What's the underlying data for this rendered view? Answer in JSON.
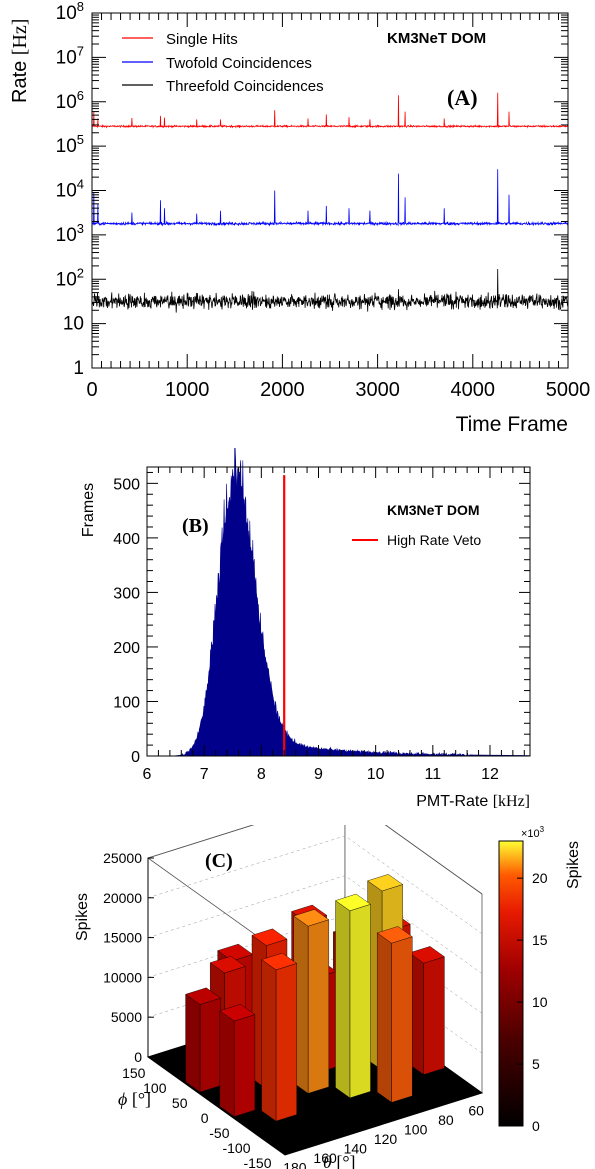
{
  "chart_data": [
    {
      "type": "line",
      "panel_label": "(A)",
      "title": "KM3NeT DOM",
      "xlabel": "Time Frame",
      "ylabel": "Rate [Hz]",
      "ylabel_parts": [
        "Rate ",
        "[Hz]"
      ],
      "xlim": [
        0,
        5000
      ],
      "ylim": [
        1,
        100000000
      ],
      "yscale": "log",
      "x_ticks": [
        "0",
        "1000",
        "2000",
        "3000",
        "4000",
        "5000"
      ],
      "y_ticks": [
        {
          "base": "1",
          "exp": ""
        },
        {
          "base": "10",
          "exp": ""
        },
        {
          "base": "10",
          "exp": "2"
        },
        {
          "base": "10",
          "exp": "3"
        },
        {
          "base": "10",
          "exp": "4"
        },
        {
          "base": "10",
          "exp": "5"
        },
        {
          "base": "10",
          "exp": "6"
        },
        {
          "base": "10",
          "exp": "7"
        },
        {
          "base": "10",
          "exp": "8"
        }
      ],
      "legend_position": "top-left",
      "series": [
        {
          "name": "Single Hits",
          "color": "#ff0000",
          "baseline": 280000,
          "spread": 0.03,
          "spikes": [
            [
              18,
              600000
            ],
            [
              60,
              420000
            ],
            [
              420,
              430000
            ],
            [
              720,
              480000
            ],
            [
              760,
              440000
            ],
            [
              1100,
              400000
            ],
            [
              1350,
              400000
            ],
            [
              1920,
              650000
            ],
            [
              2270,
              420000
            ],
            [
              2460,
              520000
            ],
            [
              2700,
              450000
            ],
            [
              2920,
              400000
            ],
            [
              3220,
              1400000
            ],
            [
              3290,
              600000
            ],
            [
              3700,
              420000
            ],
            [
              4260,
              1600000
            ],
            [
              4380,
              600000
            ]
          ]
        },
        {
          "name": "Twofold Coincidences",
          "color": "#0000ff",
          "baseline": 1800,
          "spread": 0.05,
          "spikes": [
            [
              18,
              9000
            ],
            [
              60,
              5000
            ],
            [
              420,
              3200
            ],
            [
              720,
              6000
            ],
            [
              760,
              4000
            ],
            [
              1100,
              3000
            ],
            [
              1350,
              3500
            ],
            [
              1920,
              10000
            ],
            [
              2270,
              3500
            ],
            [
              2460,
              4500
            ],
            [
              2700,
              4000
            ],
            [
              2920,
              3500
            ],
            [
              3220,
              24000
            ],
            [
              3290,
              7000
            ],
            [
              3700,
              4000
            ],
            [
              4260,
              30000
            ],
            [
              4380,
              8000
            ]
          ]
        },
        {
          "name": "Threefold Coincidences",
          "color": "#000000",
          "baseline": 32,
          "spread": 0.15,
          "spikes": [
            [
              3220,
              60
            ],
            [
              4260,
              170
            ]
          ]
        }
      ]
    },
    {
      "type": "bar",
      "panel_label": "(B)",
      "title": "KM3NeT DOM",
      "xlabel": "PMT-Rate [kHz]",
      "xlabel_parts": [
        "PMT-Rate ",
        "[kHz]"
      ],
      "ylabel": "Frames",
      "xlim": [
        6,
        12.7
      ],
      "ylim": [
        0,
        530
      ],
      "x_ticks": [
        6,
        7,
        8,
        9,
        10,
        11,
        12
      ],
      "y_ticks": [
        0,
        100,
        200,
        300,
        400,
        500
      ],
      "histogram_color": "#00008b",
      "peak_center": 7.5,
      "peak_height": 500,
      "peak_sigma": 0.3,
      "veto": {
        "name": "High Rate Veto",
        "x": 8.4,
        "color": "#ff0000"
      },
      "legend_position": "top-right"
    },
    {
      "type": "bar",
      "panel_label": "(C)",
      "zlabel": "Spikes",
      "xlabel": "θ [°]",
      "xlabel_parts": [
        "θ ",
        "[°]"
      ],
      "ylabel": "ϕ [°]",
      "ylabel_parts": [
        "ϕ ",
        "[°]"
      ],
      "z_ticks": [
        "0",
        "5000",
        "10000",
        "15000",
        "20000",
        "25000"
      ],
      "theta_ticks": [
        "180",
        "160",
        "140",
        "120",
        "100",
        "80",
        "60"
      ],
      "phi_ticks": [
        "150",
        "100",
        "50",
        "0",
        "-50",
        "-100",
        "-150"
      ],
      "zlim": [
        0,
        25000
      ],
      "colorbar": {
        "title": "Spikes",
        "multiplier": "×10",
        "multiplier_exp": "3",
        "ticks": [
          "0",
          "5",
          "10",
          "15",
          "20"
        ],
        "range": [
          0,
          23
        ]
      },
      "grid": [
        [
          0,
          0,
          0,
          0,
          0,
          0,
          0,
          0
        ],
        [
          0,
          0,
          13000,
          0,
          0,
          15000,
          0,
          0
        ],
        [
          11000,
          14000,
          0,
          12000,
          0,
          0,
          13000,
          0
        ],
        [
          0,
          0,
          18000,
          0,
          12000,
          0,
          0,
          15000
        ],
        [
          12000,
          0,
          0,
          21000,
          0,
          0,
          22500,
          0
        ],
        [
          0,
          19000,
          0,
          0,
          23500,
          0,
          0,
          14000
        ],
        [
          0,
          0,
          0,
          0,
          0,
          20000,
          0,
          0
        ],
        [
          0,
          0,
          0,
          0,
          0,
          0,
          0,
          0
        ]
      ]
    }
  ]
}
